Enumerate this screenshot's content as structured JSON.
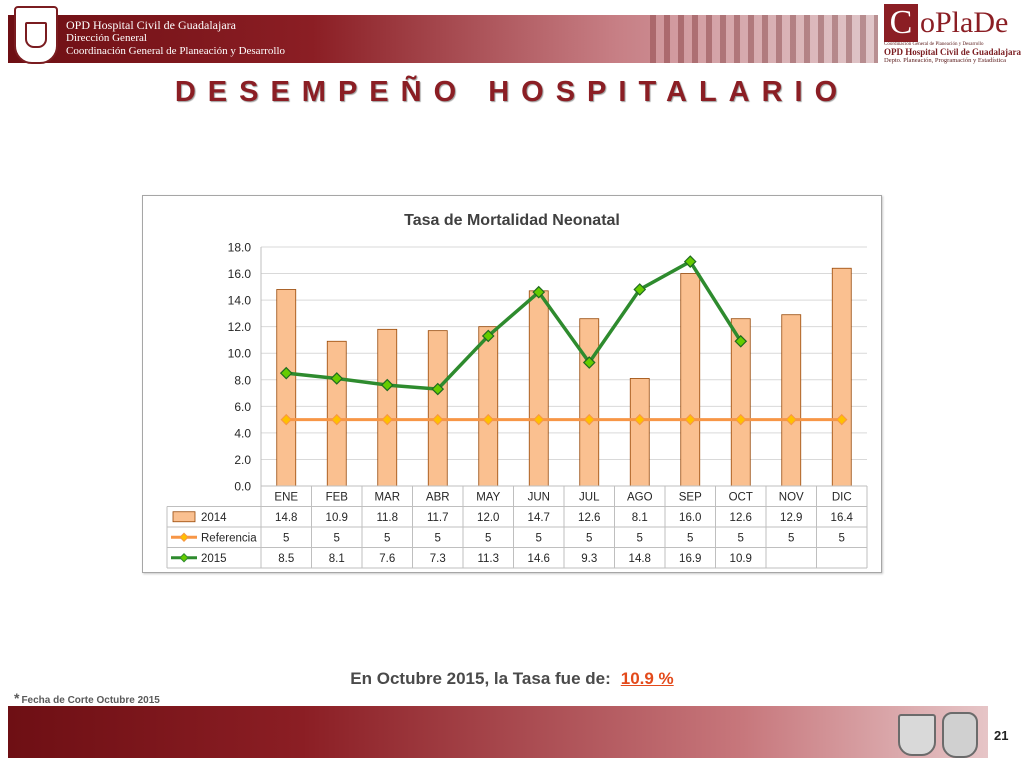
{
  "header": {
    "line1": "OPD Hospital Civil de Guadalajara",
    "line2": "Dirección General",
    "line3": "Coordinación General de Planeación y Desarrollo",
    "logo_c": "C",
    "logo_text": "oPlaDe",
    "logo_sub1": "Coordinación General de Planeación y Desarrollo",
    "logo_sub2": "OPD Hospital Civil de Guadalajara",
    "logo_sub3": "Depto. Planeación, Programación y Estadística"
  },
  "page_title": "DESEMPEÑO HOSPITALARIO",
  "colors": {
    "brand": "#8b1e24",
    "bar_2014_fill": "#fac090",
    "bar_2014_stroke": "#984807",
    "reference_line": "#f79646",
    "reference_marker": "#ffc000",
    "line_2015": "#2e8b2e",
    "marker_2015": "#66cc00",
    "highlight": "#e34a1b"
  },
  "chart_data": {
    "type": "bar",
    "title": "Tasa de Mortalidad Neonatal",
    "categories": [
      "ENE",
      "FEB",
      "MAR",
      "ABR",
      "MAY",
      "JUN",
      "JUL",
      "AGO",
      "SEP",
      "OCT",
      "NOV",
      "DIC"
    ],
    "ylim": [
      0,
      18
    ],
    "yticks": [
      "0.0",
      "2.0",
      "4.0",
      "6.0",
      "8.0",
      "10.0",
      "12.0",
      "14.0",
      "16.0",
      "18.0"
    ],
    "grid": true,
    "legend": "data-table",
    "series": [
      {
        "name": "2014",
        "type": "bar",
        "values": [
          14.8,
          10.9,
          11.8,
          11.7,
          12.0,
          14.7,
          12.6,
          8.1,
          16.0,
          12.6,
          12.9,
          16.4
        ],
        "labels": [
          "14.8",
          "10.9",
          "11.8",
          "11.7",
          "12.0",
          "14.7",
          "12.6",
          "8.1",
          "16.0",
          "12.6",
          "12.9",
          "16.4"
        ]
      },
      {
        "name": "Referencia",
        "type": "line",
        "values": [
          5,
          5,
          5,
          5,
          5,
          5,
          5,
          5,
          5,
          5,
          5,
          5
        ],
        "labels": [
          "5",
          "5",
          "5",
          "5",
          "5",
          "5",
          "5",
          "5",
          "5",
          "5",
          "5",
          "5"
        ]
      },
      {
        "name": "2015",
        "type": "line",
        "values": [
          8.5,
          8.1,
          7.6,
          7.3,
          11.3,
          14.6,
          9.3,
          14.8,
          16.9,
          10.9,
          null,
          null
        ],
        "labels": [
          "8.5",
          "8.1",
          "7.6",
          "7.3",
          "11.3",
          "14.6",
          "9.3",
          "14.8",
          "16.9",
          "10.9",
          "",
          ""
        ]
      }
    ]
  },
  "summary": {
    "text": "En Octubre 2015, la Tasa fue de:",
    "value": "10.9 %"
  },
  "footnote": {
    "star": "*",
    "text": "Fecha de Corte Octubre 2015"
  },
  "page_number": "21"
}
